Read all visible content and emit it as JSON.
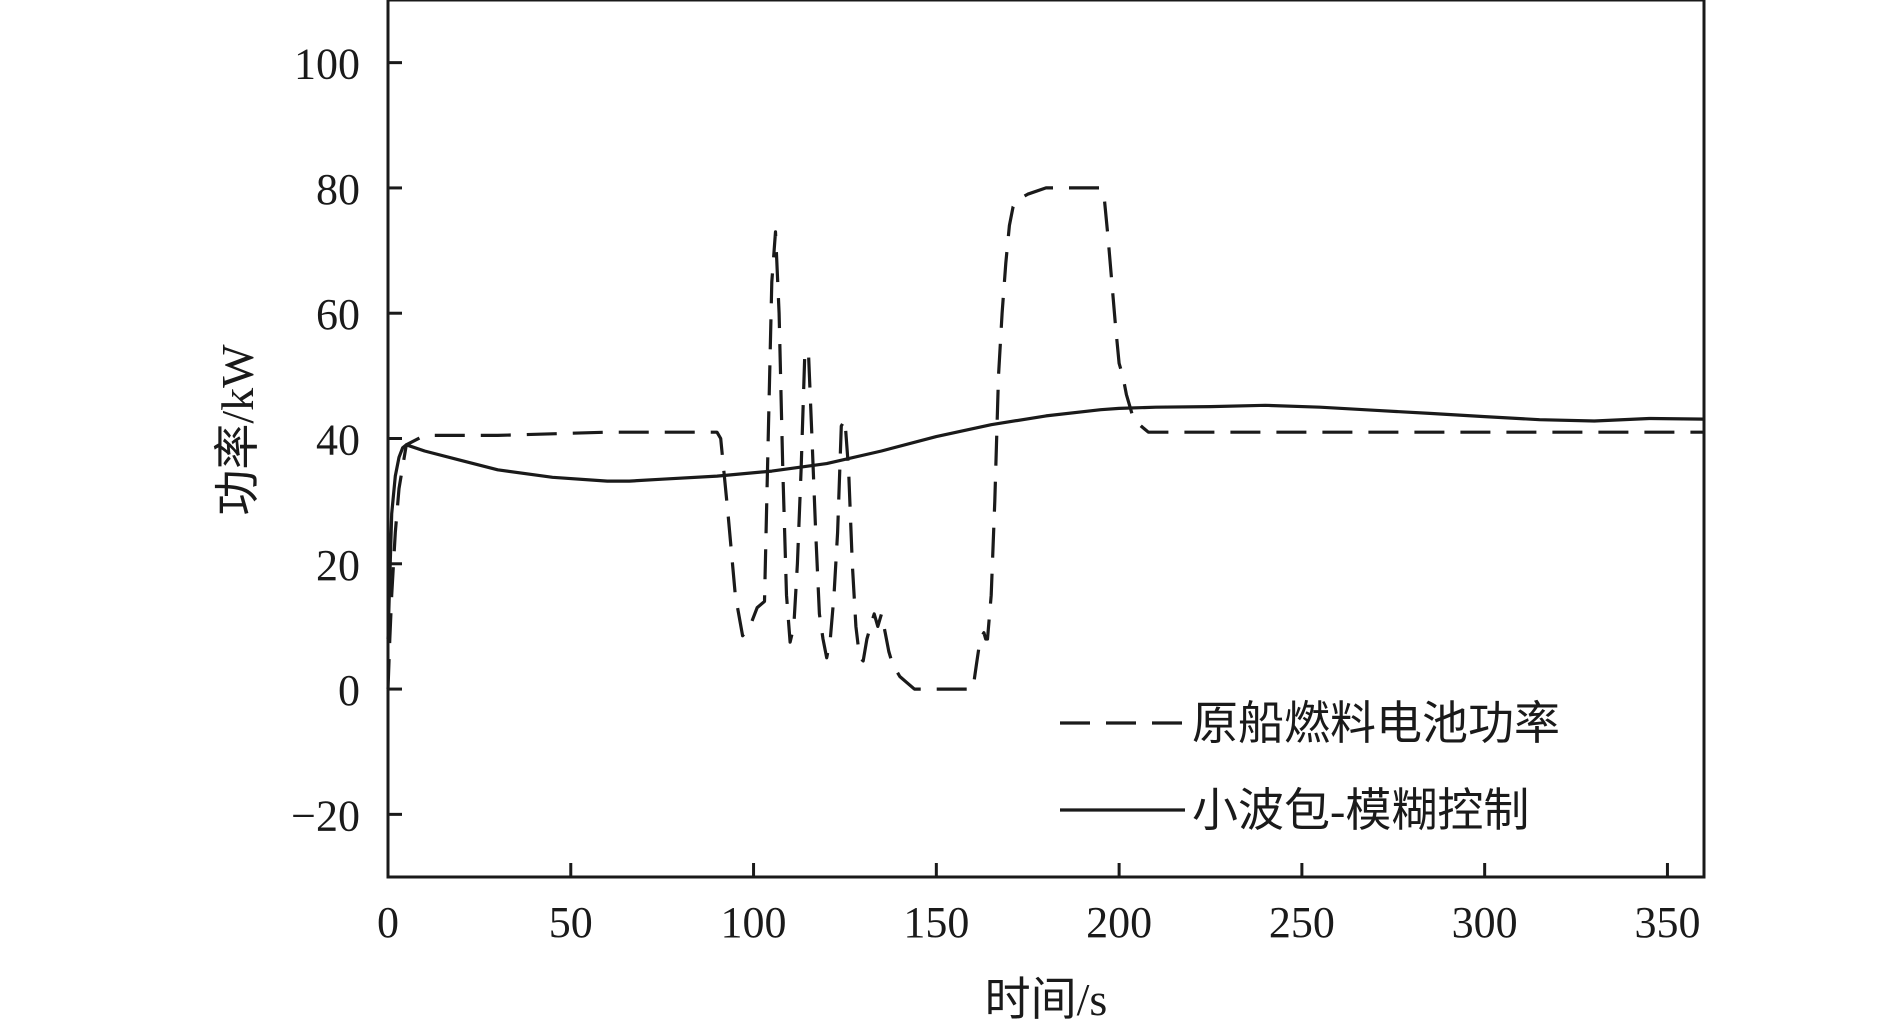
{
  "chart_data": {
    "type": "line",
    "title": "",
    "xlabel": "时间/s",
    "ylabel": "功率/kW",
    "xlim": [
      0,
      360
    ],
    "ylim": [
      -30,
      110
    ],
    "xticks": [
      0,
      50,
      100,
      150,
      200,
      250,
      300,
      350
    ],
    "yticks": [
      -20,
      0,
      20,
      40,
      60,
      80,
      100
    ],
    "xtick_labels": [
      "0",
      "50",
      "100",
      "150",
      "200",
      "250",
      "300",
      "350"
    ],
    "ytick_labels": [
      "−20",
      "0",
      "20",
      "40",
      "60",
      "80",
      "100"
    ],
    "grid": false,
    "legend_position": "bottom-right",
    "series": [
      {
        "name": "原船燃料电池功率",
        "style": "dashed",
        "color": "#1a1a1a",
        "x": [
          0,
          0.5,
          1,
          2,
          3,
          5,
          10,
          30,
          60,
          90,
          91,
          93,
          95,
          97,
          99,
          101,
          103,
          104,
          105,
          106,
          107,
          108,
          109,
          110,
          111,
          112,
          113,
          114,
          115,
          116,
          117,
          118,
          119,
          120,
          121,
          122,
          123,
          124,
          125,
          126,
          127,
          128,
          129,
          130,
          131,
          132,
          133,
          134,
          135,
          136,
          137,
          138,
          140,
          142,
          144,
          146,
          150,
          155,
          158,
          160,
          161,
          162,
          163,
          163.5,
          164,
          165,
          166,
          167,
          168,
          169,
          170,
          171,
          172,
          175,
          180,
          190,
          195,
          196,
          197,
          198,
          199,
          200,
          201,
          202,
          203,
          204,
          205,
          206,
          207,
          208,
          210,
          230,
          250,
          270,
          300,
          330,
          360
        ],
        "y": [
          0,
          8,
          15,
          25,
          32,
          39,
          40.5,
          40.5,
          41,
          41,
          40,
          28,
          15,
          8.5,
          10,
          13,
          14,
          40,
          65,
          73,
          60,
          35,
          15,
          7.5,
          10,
          20,
          35,
          53,
          54,
          40,
          25,
          12,
          8,
          5,
          8,
          15,
          25,
          42,
          43,
          35,
          20,
          10,
          5,
          4.5,
          8,
          10,
          12,
          10,
          12,
          9,
          6,
          4,
          2,
          1,
          0,
          0,
          0,
          0,
          0,
          0,
          4,
          8,
          9,
          8,
          8,
          15,
          30,
          50,
          60,
          68,
          74,
          77,
          78,
          79,
          80,
          80,
          80,
          78,
          72,
          65,
          58,
          52,
          50,
          47,
          45,
          43,
          42.5,
          42,
          41.5,
          41,
          41,
          41,
          41,
          41,
          41,
          41,
          41
        ]
      },
      {
        "name": "小波包-模糊控制",
        "style": "solid",
        "color": "#1a1a1a",
        "x": [
          0,
          1,
          2,
          3,
          4,
          5,
          10,
          20,
          30,
          45,
          60,
          66,
          75,
          90,
          105,
          120,
          135,
          150,
          165,
          180,
          195,
          200,
          210,
          225,
          240,
          255,
          270,
          285,
          300,
          315,
          330,
          345,
          360
        ],
        "y": [
          8,
          28,
          34,
          37,
          38.5,
          39,
          38,
          36.5,
          35,
          33.8,
          33.2,
          33.2,
          33.5,
          34,
          34.8,
          36,
          38,
          40.3,
          42.2,
          43.6,
          44.6,
          44.8,
          45,
          45.1,
          45.3,
          45,
          44.5,
          44,
          43.5,
          43,
          42.8,
          43.2,
          43.1
        ]
      }
    ]
  }
}
